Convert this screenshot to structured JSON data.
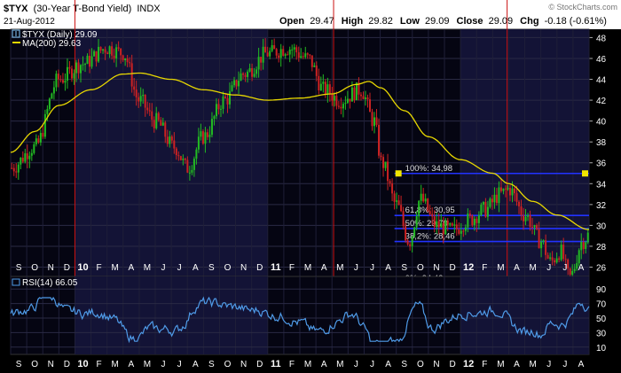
{
  "header": {
    "symbol": "$TYX",
    "name": "(30-Year T-Bond Yield)",
    "exchange": "INDX",
    "date": "21-Aug-2012",
    "open_label": "Open",
    "open": "29.47",
    "high_label": "High",
    "high": "29.82",
    "low_label": "Low",
    "low": "29.09",
    "close_label": "Close",
    "close": "29.09",
    "chg_label": "Chg",
    "chg": "-0.18 (-0.61%)",
    "watermark": "© StockCharts.com"
  },
  "colors": {
    "background": "#000000",
    "panel": "#0f0f2f",
    "up_candle": "#22bb22",
    "down_candle": "#cc2222",
    "ma_line": "#e8d800",
    "fib_line": "#2233ff",
    "vertical_marker": "#cc1111",
    "rsi_line": "#4f9be8"
  },
  "chart_data": [
    {
      "type": "line",
      "title": "",
      "legend": [
        {
          "name": "$TYX (Daily) 29.09",
          "icon": "candlestick-icon"
        },
        {
          "name": "MA(200) 29.63",
          "color": "#e8d800"
        }
      ],
      "x_tick_labels": [
        "S",
        "O",
        "N",
        "D",
        "10",
        "F",
        "M",
        "A",
        "M",
        "J",
        "J",
        "A",
        "S",
        "O",
        "N",
        "D",
        "11",
        "F",
        "M",
        "A",
        "M",
        "J",
        "J",
        "A",
        "S",
        "O",
        "N",
        "D",
        "12",
        "F",
        "M",
        "A",
        "M",
        "J",
        "J",
        "A"
      ],
      "x_bold_labels": [
        "10",
        "11",
        "12"
      ],
      "y_ticks": [
        26,
        28,
        30,
        32,
        34,
        36,
        38,
        40,
        42,
        44,
        46,
        48
      ],
      "ylim": [
        24.6,
        48.8
      ],
      "grid": true,
      "legend_position": "top-left",
      "x_range": [
        "2009-09",
        "2012-08"
      ],
      "price_anchors": [
        {
          "t": 0.0,
          "v": 35.5
        },
        {
          "t": 1.5,
          "v": 37.5
        },
        {
          "t": 3.0,
          "v": 44.0
        },
        {
          "t": 4.5,
          "v": 45.5
        },
        {
          "t": 6.0,
          "v": 47.0
        },
        {
          "t": 7.0,
          "v": 46.5
        },
        {
          "t": 8.0,
          "v": 42.0
        },
        {
          "t": 9.0,
          "v": 40.0
        },
        {
          "t": 10.2,
          "v": 37.5
        },
        {
          "t": 11.0,
          "v": 35.5
        },
        {
          "t": 12.0,
          "v": 38.5
        },
        {
          "t": 13.3,
          "v": 42.0
        },
        {
          "t": 14.5,
          "v": 44.5
        },
        {
          "t": 16.0,
          "v": 46.5
        },
        {
          "t": 17.3,
          "v": 47.0
        },
        {
          "t": 18.5,
          "v": 46.0
        },
        {
          "t": 19.5,
          "v": 43.0
        },
        {
          "t": 20.5,
          "v": 42.0
        },
        {
          "t": 21.8,
          "v": 43.0
        },
        {
          "t": 22.6,
          "v": 40.0
        },
        {
          "t": 23.1,
          "v": 36.0
        },
        {
          "t": 24.0,
          "v": 32.0
        },
        {
          "t": 24.8,
          "v": 28.5
        },
        {
          "t": 25.5,
          "v": 32.5
        },
        {
          "t": 26.5,
          "v": 30.0
        },
        {
          "t": 27.5,
          "v": 29.5
        },
        {
          "t": 28.5,
          "v": 30.5
        },
        {
          "t": 29.5,
          "v": 31.5
        },
        {
          "t": 30.5,
          "v": 33.0
        },
        {
          "t": 31.0,
          "v": 33.5
        },
        {
          "t": 32.0,
          "v": 31.0
        },
        {
          "t": 33.0,
          "v": 28.5
        },
        {
          "t": 33.6,
          "v": 26.5
        },
        {
          "t": 34.2,
          "v": 27.5
        },
        {
          "t": 34.8,
          "v": 25.0
        },
        {
          "t": 35.6,
          "v": 28.5
        },
        {
          "t": 36.0,
          "v": 29.1
        }
      ],
      "ma200_anchors": [
        {
          "t": 0.0,
          "v": 37.0
        },
        {
          "t": 1.5,
          "v": 39.0
        },
        {
          "t": 3.0,
          "v": 41.5
        },
        {
          "t": 5.0,
          "v": 43.0
        },
        {
          "t": 7.0,
          "v": 44.5
        },
        {
          "t": 8.0,
          "v": 44.6
        },
        {
          "t": 10.0,
          "v": 44.0
        },
        {
          "t": 12.0,
          "v": 43.0
        },
        {
          "t": 14.0,
          "v": 42.5
        },
        {
          "t": 16.0,
          "v": 42.0
        },
        {
          "t": 18.0,
          "v": 42.2
        },
        {
          "t": 20.0,
          "v": 42.6
        },
        {
          "t": 21.5,
          "v": 43.5
        },
        {
          "t": 22.3,
          "v": 43.8
        },
        {
          "t": 23.0,
          "v": 43.2
        },
        {
          "t": 24.5,
          "v": 41.0
        },
        {
          "t": 26.0,
          "v": 38.5
        },
        {
          "t": 28.0,
          "v": 36.3
        },
        {
          "t": 30.0,
          "v": 35.0
        },
        {
          "t": 31.0,
          "v": 34.0
        },
        {
          "t": 32.5,
          "v": 32.3
        },
        {
          "t": 34.0,
          "v": 31.0
        },
        {
          "t": 36.0,
          "v": 29.6
        }
      ],
      "fib_levels": [
        {
          "label": "100%: 34,98",
          "value": 34.98,
          "marker": true
        },
        {
          "label": "61,8%: 30,95",
          "value": 30.95
        },
        {
          "label": "50%: 29,70",
          "value": 29.7
        },
        {
          "label": "38,2%: 28,46",
          "value": 28.46
        },
        {
          "label": "0%: 24,42",
          "value": 24.42,
          "marker": true
        }
      ],
      "fib_start_t": 24.0,
      "vertical_markers_t": [
        4.0,
        20.1,
        30.9
      ]
    },
    {
      "type": "line",
      "title": "",
      "legend": [
        {
          "name": "RSI(14) 66.05",
          "color": "#4f9be8"
        }
      ],
      "y_ticks": [
        10,
        30,
        50,
        70,
        90
      ],
      "ylim": [
        0,
        100
      ],
      "last_value": 66.05,
      "x_tick_labels": [
        "S",
        "O",
        "N",
        "D",
        "10",
        "F",
        "M",
        "A",
        "M",
        "J",
        "J",
        "A",
        "S",
        "O",
        "N",
        "D",
        "11",
        "F",
        "M",
        "A",
        "M",
        "J",
        "J",
        "A",
        "S",
        "O",
        "N",
        "D",
        "12",
        "F",
        "M",
        "A",
        "M",
        "J",
        "J",
        "A"
      ]
    }
  ]
}
